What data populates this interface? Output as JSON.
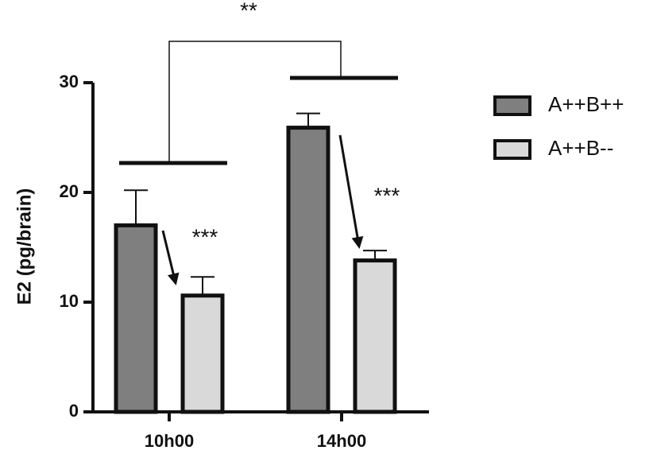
{
  "chart_data": {
    "type": "bar",
    "y_label": "E2 (pg/brain)",
    "categories": [
      "10h00",
      "14h00"
    ],
    "series": [
      {
        "name": "A++B++",
        "color": "#7f7f7f",
        "values": [
          17,
          25.9
        ],
        "errors": [
          3.2,
          1.3
        ]
      },
      {
        "name": "A++B--",
        "color": "#d9d9d9",
        "values": [
          10.6,
          13.8
        ],
        "errors": [
          1.7,
          0.9
        ]
      }
    ],
    "ylim": [
      0,
      30
    ],
    "yticks": [
      0,
      10,
      20,
      30
    ],
    "legend": "right",
    "annotations": [
      "**",
      "***",
      "***"
    ]
  }
}
